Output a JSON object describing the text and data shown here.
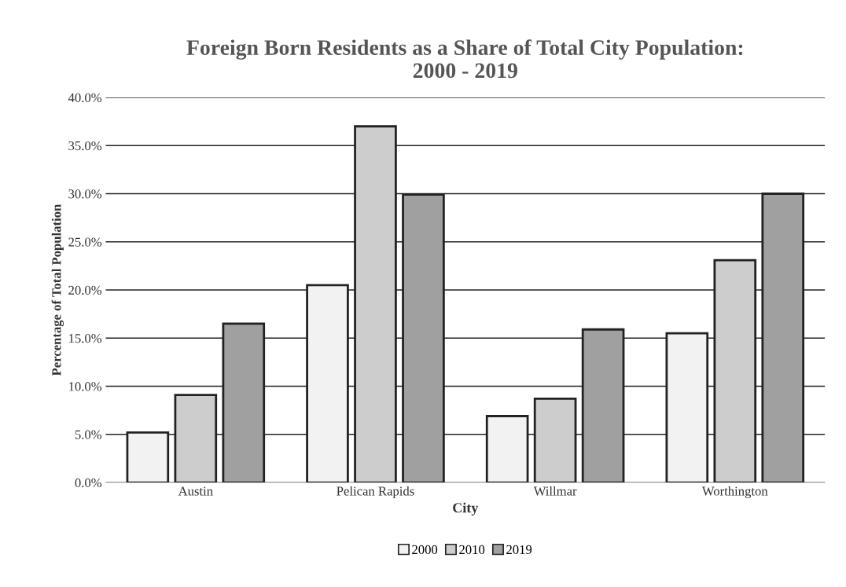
{
  "chart_data": {
    "type": "bar",
    "title": "Foreign Born Residents as a Share of Total City Population:\n2000 - 2019",
    "xlabel": "City",
    "ylabel": "Percentage of Total Population",
    "categories": [
      "Austin",
      "Pelican Rapids",
      "Willmar",
      "Worthington"
    ],
    "series": [
      {
        "name": "2000",
        "color": "#f2f2f2",
        "values": [
          5.2,
          20.5,
          6.9,
          15.5
        ]
      },
      {
        "name": "2010",
        "color": "#cdcdcd",
        "values": [
          9.1,
          37.0,
          8.7,
          23.1
        ]
      },
      {
        "name": "2019",
        "color": "#a0a0a0",
        "values": [
          16.5,
          29.9,
          15.9,
          30.0
        ]
      }
    ],
    "ylim": [
      0,
      40
    ],
    "yticks": [
      {
        "value": 0,
        "label": "0.0%"
      },
      {
        "value": 5,
        "label": "5.0%"
      },
      {
        "value": 10,
        "label": "10.0%"
      },
      {
        "value": 15,
        "label": "15.0%"
      },
      {
        "value": 20,
        "label": "20.0%"
      },
      {
        "value": 25,
        "label": "25.0%"
      },
      {
        "value": 30,
        "label": "30.0%"
      },
      {
        "value": 35,
        "label": "35.0%"
      },
      {
        "value": 40,
        "label": "40.0%"
      }
    ],
    "grid": "y",
    "legend": "bottom"
  }
}
